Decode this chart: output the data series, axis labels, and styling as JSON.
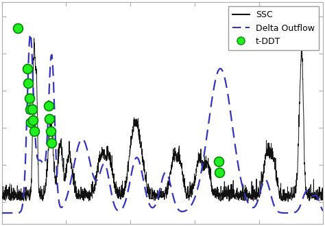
{
  "background_color": "#ffffff",
  "ssc_color": "#111111",
  "delta_color": "#3333bb",
  "tddt_color": "#22ee22",
  "tddt_edgecolor": "#008800",
  "legend_labels": [
    "SSC",
    "Delta Outflow",
    "t-DDT"
  ],
  "ssc_linewidth": 0.7,
  "delta_linewidth": 1.6,
  "dot_size": 100,
  "dot_edgewidth": 1.2,
  "legend_fontsize": 9,
  "ylim": [
    -0.12,
    1.08
  ],
  "xlim": [
    0,
    10
  ]
}
